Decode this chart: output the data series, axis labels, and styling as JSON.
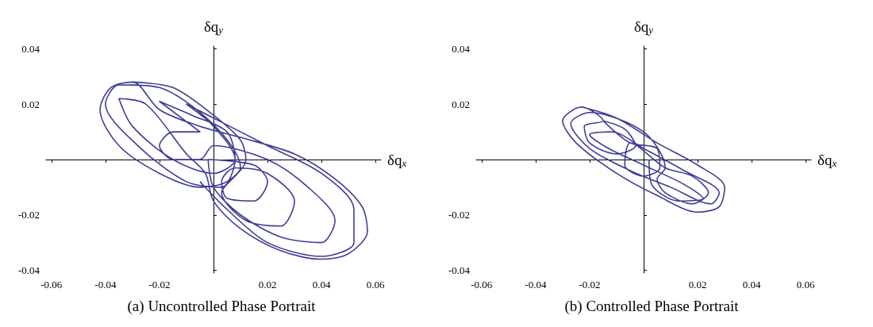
{
  "chart_data": [
    {
      "type": "line",
      "title": "(a) Uncontrolled Phase Portrait",
      "xlabel": "δq$_{x}$",
      "ylabel": "δq$_{y}$",
      "xlim": [
        -0.062,
        0.062
      ],
      "ylim": [
        -0.041,
        0.041
      ],
      "xticks": [
        -0.06,
        -0.04,
        -0.02,
        {
          "value": 0,
          "label": null
        },
        0.02,
        0.04,
        0.06
      ],
      "yticks": [
        -0.04,
        -0.02,
        {
          "value": 0,
          "label": null
        },
        0.02,
        0.04
      ],
      "series": [
        {
          "color": "#3d3d98",
          "x": [
            -0.03,
            -0.015,
            0,
            0.01,
            0.012,
            0.005,
            -0.005,
            -0.02,
            -0.035,
            -0.042,
            -0.038,
            -0.03,
            -0.02,
            -0.005,
            0.01,
            0.03,
            0.045,
            0.055,
            0.057,
            0.05,
            0.04,
            0.025,
            0.01,
            0,
            -0.003,
            -0.01,
            -0.025,
            -0.035,
            -0.03,
            -0.015,
            0,
            0.008,
            0.005,
            -0.008,
            -0.02,
            -0.005,
            -0.015,
            -0.02,
            -0.015,
            -0.005,
            0,
            0.02,
            0.035,
            0.045,
            0.04,
            0.025,
            0.01,
            0,
            -0.002,
            0.015,
            0.02,
            0.015,
            0.005,
            0.003,
            0.008,
            0.02,
            0.03,
            0.025,
            0.012,
            0.003,
            0.01,
            -0.02,
            -0.035,
            -0.04,
            -0.028,
            -0.01,
            0.003,
            0.008,
            0,
            -0.01,
            0.02,
            0.04,
            0.052,
            0.052,
            0.04,
            0.02,
            0.005,
            -0.005
          ],
          "values": [
            0.028,
            0.026,
            0.016,
            0.007,
            0,
            -0.008,
            -0.01,
            -0.005,
            0.005,
            0.018,
            0.026,
            0.028,
            0.018,
            0.012,
            0.008,
            0.002,
            -0.007,
            -0.017,
            -0.026,
            -0.034,
            -0.036,
            -0.033,
            -0.025,
            -0.015,
            -0.005,
            0.002,
            0.02,
            0.022,
            0.012,
            0,
            -0.005,
            0,
            0.01,
            0.016,
            0.021,
            0.01,
            0.01,
            0.005,
            0,
            0,
            0.005,
            0,
            -0.01,
            -0.022,
            -0.03,
            -0.028,
            -0.02,
            -0.01,
            0,
            -0.002,
            -0.008,
            -0.015,
            -0.014,
            -0.008,
            -0.003,
            -0.005,
            -0.015,
            -0.024,
            -0.022,
            -0.012,
            -0.003,
            0.026,
            0.027,
            0.02,
            0.005,
            -0.008,
            -0.01,
            0,
            0.012,
            0.02,
            0.005,
            -0.005,
            -0.018,
            -0.03,
            -0.035,
            -0.03,
            -0.018,
            -0.008
          ]
        }
      ]
    },
    {
      "type": "line",
      "title": "(b) Controlled Phase Portrait",
      "xlabel": "δq$_{x}$",
      "ylabel": "δq$_{y}$",
      "xlim": [
        -0.062,
        0.062
      ],
      "ylim": [
        -0.041,
        0.041
      ],
      "xticks": [
        -0.06,
        -0.04,
        -0.02,
        {
          "value": 0,
          "label": null
        },
        0.02,
        0.04,
        0.06
      ],
      "yticks": [
        -0.04,
        -0.02,
        {
          "value": 0,
          "label": null
        },
        0.02,
        0.04
      ],
      "series": [
        {
          "color": "#3d3d98",
          "x": [
            -0.023,
            -0.01,
            0.005,
            0.02,
            0.03,
            0.028,
            0.02,
            0.005,
            -0.01,
            -0.025,
            -0.03,
            -0.023,
            -0.015,
            -0.022,
            -0.02,
            -0.01,
            -0.003,
            -0.007,
            -0.015,
            -0.005,
            0.005,
            0.006,
            0,
            -0.007,
            -0.005,
            0.008,
            0.018,
            0.024,
            0.018,
            0.008,
            0.005,
            0.008,
            0,
            -0.02,
            -0.027,
            -0.02,
            -0.005,
            0.01,
            0.025,
            0.028,
            0.015,
            0,
            -0.012,
            -0.02,
            -0.013,
            0,
            0.015,
            0.022,
            0.013,
            0.003,
            0.002
          ],
          "values": [
            0.019,
            0.015,
            0.006,
            -0.002,
            -0.01,
            -0.017,
            -0.019,
            -0.013,
            -0.005,
            0.006,
            0.014,
            0.019,
            0.014,
            0.012,
            0.006,
            0.002,
            0.005,
            0.011,
            0.014,
            0.006,
            0.004,
            -0.003,
            -0.006,
            -0.002,
            0.006,
            -0.003,
            -0.006,
            -0.012,
            -0.016,
            -0.012,
            -0.007,
            -0.003,
            0.01,
            0.017,
            0.013,
            0.004,
            -0.004,
            -0.01,
            -0.016,
            -0.012,
            -0.004,
            0.004,
            0.01,
            0.009,
            0.004,
            -0.002,
            -0.009,
            -0.014,
            -0.015,
            -0.009,
            0
          ]
        }
      ]
    }
  ]
}
